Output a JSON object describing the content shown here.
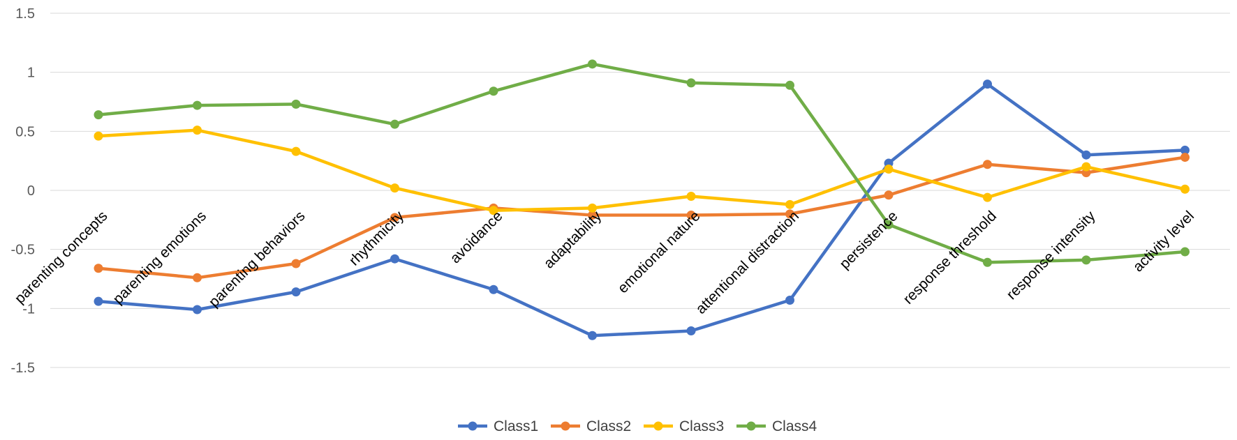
{
  "chart_data": {
    "type": "line",
    "title": "",
    "xlabel": "",
    "ylabel": "",
    "ylim": [
      -1.5,
      1.5
    ],
    "yticks": [
      -1.5,
      -1,
      -0.5,
      0,
      0.5,
      1,
      1.5
    ],
    "ytick_labels": [
      "-1.5",
      "-1",
      "-0.5",
      "0",
      "0.5",
      "1",
      "1.5"
    ],
    "grid": true,
    "legend_position": "bottom-center",
    "categories": [
      "parenting concepts",
      "parenting emotions",
      "parenting behaviors",
      "rhythmicity",
      "avoidance",
      "adaptability",
      "emotional nature",
      "attentional distraction",
      "persistence",
      "response threshold",
      "response intensity",
      "activity level"
    ],
    "series": [
      {
        "name": "Class1",
        "color": "#4472C4",
        "values": [
          -0.94,
          -1.01,
          -0.86,
          -0.58,
          -0.84,
          -1.23,
          -1.19,
          -0.93,
          0.23,
          0.9,
          0.3,
          0.34
        ]
      },
      {
        "name": "Class2",
        "color": "#ED7D31",
        "values": [
          -0.66,
          -0.74,
          -0.62,
          -0.23,
          -0.15,
          -0.21,
          -0.21,
          -0.2,
          -0.04,
          0.22,
          0.15,
          0.28
        ]
      },
      {
        "name": "Class3",
        "color": "#FFC000",
        "values": [
          0.46,
          0.51,
          0.33,
          0.02,
          -0.17,
          -0.15,
          -0.05,
          -0.12,
          0.18,
          -0.06,
          0.2,
          0.01
        ]
      },
      {
        "name": "Class4",
        "color": "#70AD47",
        "values": [
          0.64,
          0.72,
          0.73,
          0.56,
          0.84,
          1.07,
          0.91,
          0.89,
          -0.29,
          -0.61,
          -0.59,
          -0.52
        ]
      }
    ]
  }
}
